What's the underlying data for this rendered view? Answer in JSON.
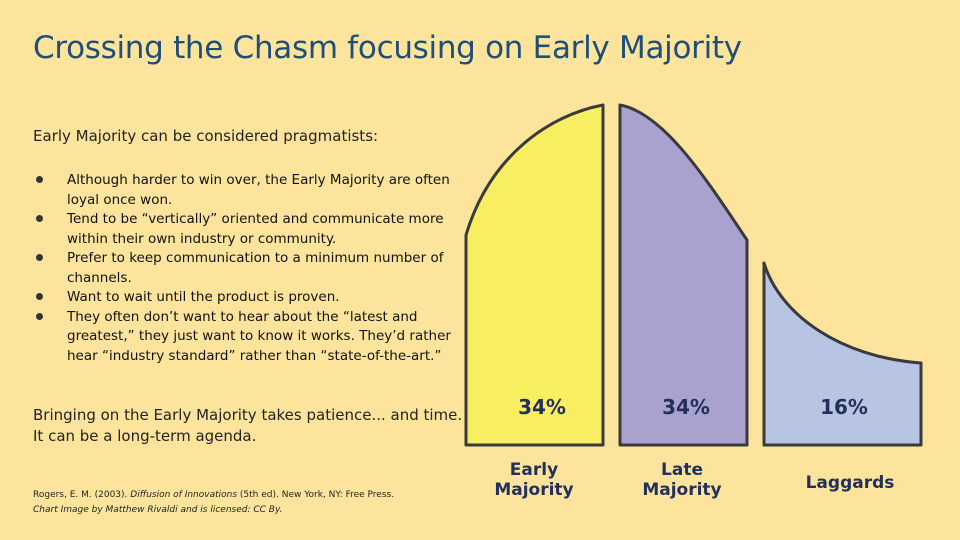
{
  "slide": {
    "title": "Crossing the Chasm focusing on Early Majority",
    "intro": "Early Majority can be considered pragmatists:",
    "bullets": [
      "Although harder to win over, the Early Majority are often loyal once won.",
      "Tend to be “vertically” oriented and communicate more within their own industry or community.",
      "Prefer to keep communication to a minimum number of channels.",
      "Want to wait until the product is proven.",
      "They often don’t want to hear about the “latest and greatest,” they just want to know it works. They’d rather hear “industry standard” rather than “state-of-the-art.”"
    ],
    "closing": "Bringing on the Early Majority takes patience... and time. It can be a long-term agenda.",
    "reference": {
      "authors": "Rogers, E. M. (2003). ",
      "book": "Diffusion of Innovations",
      "rest": " (5th ed). New York, NY: Free Press.",
      "credit": "Chart Image by Matthew Rivaldi and is licensed:  CC By."
    }
  },
  "chart_data": {
    "type": "area",
    "segments": [
      {
        "name": "Early Majority",
        "line1": "Early",
        "line2": "Majority",
        "percent_label": "34%",
        "value": 34,
        "color": "#f8ee62"
      },
      {
        "name": "Late Majority",
        "line1": "Late",
        "line2": "Majority",
        "percent_label": "34%",
        "value": 34,
        "color": "#a9a2cf"
      },
      {
        "name": "Laggards",
        "line1": "Laggards",
        "line2": "",
        "percent_label": "16%",
        "value": 16,
        "color": "#b7c5e3"
      }
    ]
  }
}
